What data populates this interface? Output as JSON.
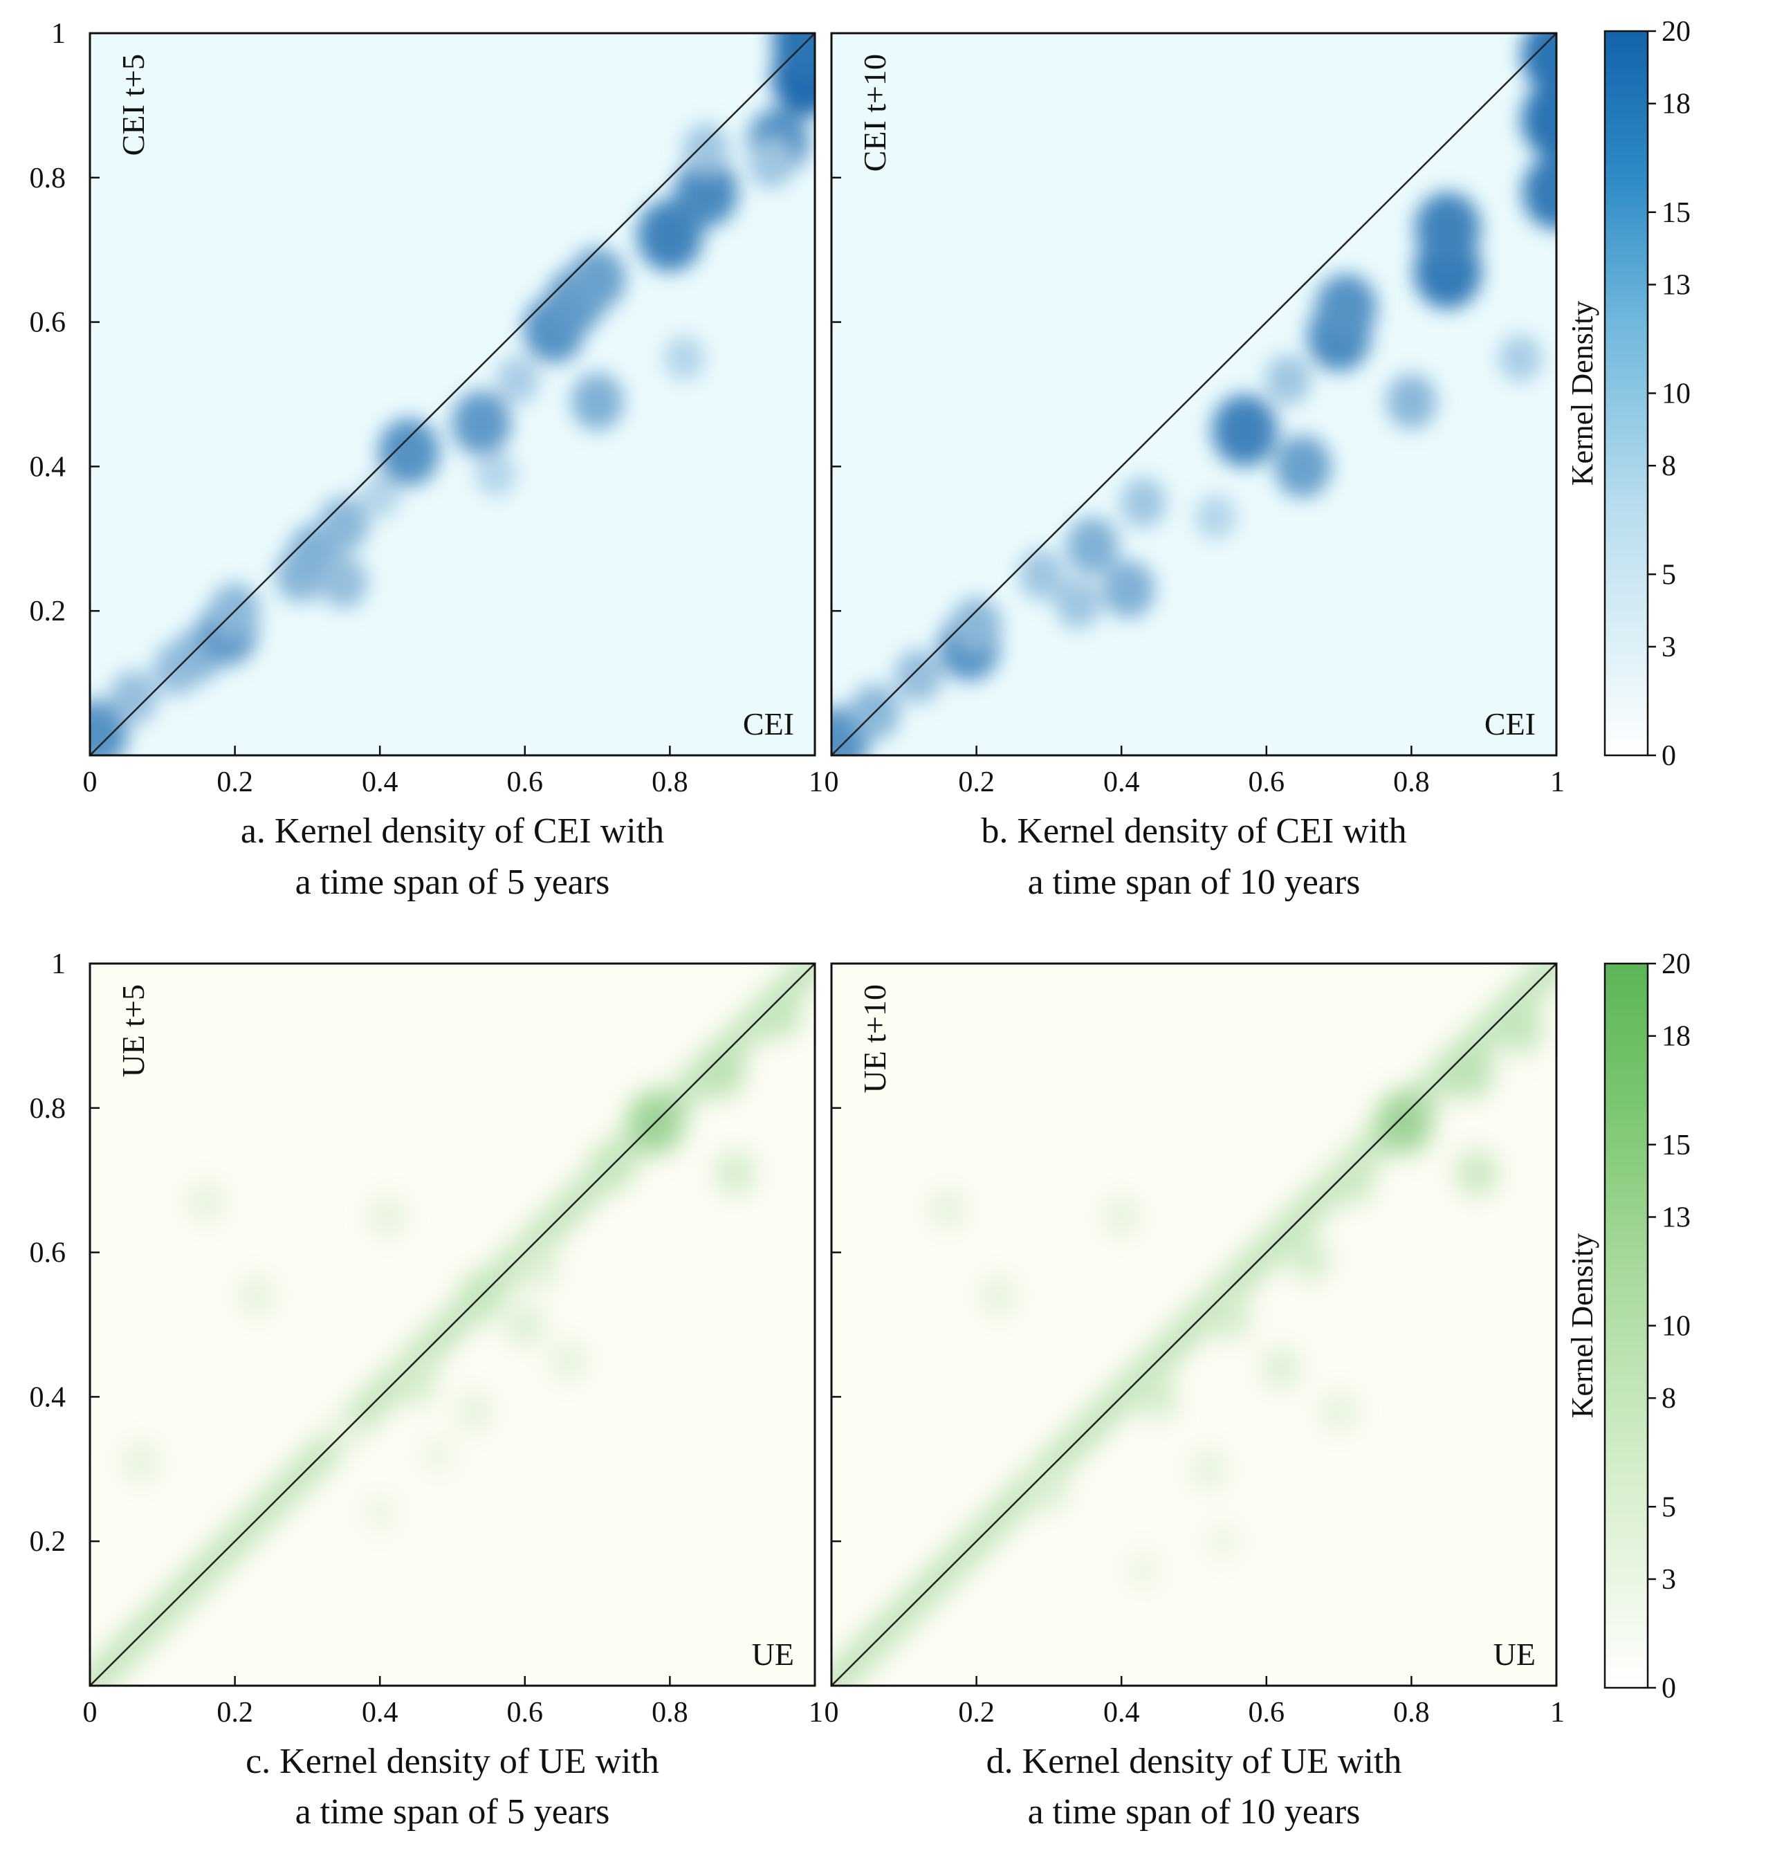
{
  "chart_data": [
    {
      "type": "heatmap",
      "panel": "a",
      "caption_line1": "a. Kernel density of CEI with",
      "caption_line2": "a time span of 5 years",
      "xlabel": "CEI",
      "ylabel": "CEI t+5",
      "xlim": [
        0,
        1
      ],
      "ylim": [
        0,
        1
      ],
      "x_ticks": [
        "0",
        "0.2",
        "0.4",
        "0.6",
        "0.8",
        "1"
      ],
      "y_ticks": [
        "0.2",
        "0.4",
        "0.6",
        "0.8",
        "1"
      ],
      "diagonal_reference_line": true,
      "colorscale": "blue",
      "density_peaks": [
        {
          "x": 0.01,
          "y": 0.03,
          "v": 14
        },
        {
          "x": 0.06,
          "y": 0.08,
          "v": 8
        },
        {
          "x": 0.12,
          "y": 0.12,
          "v": 8
        },
        {
          "x": 0.15,
          "y": 0.14,
          "v": 9
        },
        {
          "x": 0.19,
          "y": 0.17,
          "v": 13
        },
        {
          "x": 0.2,
          "y": 0.2,
          "v": 9
        },
        {
          "x": 0.29,
          "y": 0.25,
          "v": 9
        },
        {
          "x": 0.31,
          "y": 0.28,
          "v": 10
        },
        {
          "x": 0.35,
          "y": 0.24,
          "v": 8
        },
        {
          "x": 0.35,
          "y": 0.32,
          "v": 9
        },
        {
          "x": 0.4,
          "y": 0.36,
          "v": 5
        },
        {
          "x": 0.44,
          "y": 0.42,
          "v": 14
        },
        {
          "x": 0.54,
          "y": 0.46,
          "v": 13
        },
        {
          "x": 0.56,
          "y": 0.39,
          "v": 5
        },
        {
          "x": 0.59,
          "y": 0.52,
          "v": 6
        },
        {
          "x": 0.64,
          "y": 0.59,
          "v": 14
        },
        {
          "x": 0.67,
          "y": 0.63,
          "v": 13
        },
        {
          "x": 0.7,
          "y": 0.66,
          "v": 12
        },
        {
          "x": 0.7,
          "y": 0.49,
          "v": 10
        },
        {
          "x": 0.82,
          "y": 0.55,
          "v": 5
        },
        {
          "x": 0.8,
          "y": 0.72,
          "v": 16
        },
        {
          "x": 0.85,
          "y": 0.78,
          "v": 15
        },
        {
          "x": 0.85,
          "y": 0.84,
          "v": 7
        },
        {
          "x": 0.95,
          "y": 0.85,
          "v": 14
        },
        {
          "x": 0.94,
          "y": 0.82,
          "v": 7
        },
        {
          "x": 0.99,
          "y": 0.94,
          "v": 19
        },
        {
          "x": 0.99,
          "y": 0.99,
          "v": 18
        }
      ]
    },
    {
      "type": "heatmap",
      "panel": "b",
      "caption_line1": "b. Kernel density of CEI with",
      "caption_line2": "a time span of 10 years",
      "xlabel": "CEI",
      "ylabel": "CEI t+10",
      "xlim": [
        0,
        1
      ],
      "ylim": [
        0,
        1
      ],
      "x_ticks": [
        "0",
        "0.2",
        "0.4",
        "0.6",
        "0.8",
        "1"
      ],
      "y_ticks": [
        "0.2",
        "0.4",
        "0.6",
        "0.8",
        "1"
      ],
      "diagonal_reference_line": true,
      "colorscale": "blue",
      "density_peaks": [
        {
          "x": 0.01,
          "y": 0.02,
          "v": 14
        },
        {
          "x": 0.06,
          "y": 0.06,
          "v": 9
        },
        {
          "x": 0.12,
          "y": 0.11,
          "v": 8
        },
        {
          "x": 0.19,
          "y": 0.15,
          "v": 14
        },
        {
          "x": 0.2,
          "y": 0.18,
          "v": 9
        },
        {
          "x": 0.29,
          "y": 0.25,
          "v": 7
        },
        {
          "x": 0.34,
          "y": 0.21,
          "v": 7
        },
        {
          "x": 0.36,
          "y": 0.29,
          "v": 10
        },
        {
          "x": 0.41,
          "y": 0.23,
          "v": 10
        },
        {
          "x": 0.43,
          "y": 0.35,
          "v": 7
        },
        {
          "x": 0.53,
          "y": 0.33,
          "v": 5
        },
        {
          "x": 0.57,
          "y": 0.45,
          "v": 16
        },
        {
          "x": 0.63,
          "y": 0.52,
          "v": 7
        },
        {
          "x": 0.65,
          "y": 0.4,
          "v": 12
        },
        {
          "x": 0.7,
          "y": 0.58,
          "v": 15
        },
        {
          "x": 0.71,
          "y": 0.62,
          "v": 14
        },
        {
          "x": 0.8,
          "y": 0.49,
          "v": 9
        },
        {
          "x": 0.85,
          "y": 0.67,
          "v": 17
        },
        {
          "x": 0.85,
          "y": 0.73,
          "v": 16
        },
        {
          "x": 0.95,
          "y": 0.55,
          "v": 6
        },
        {
          "x": 1.0,
          "y": 0.78,
          "v": 17
        },
        {
          "x": 1.0,
          "y": 0.88,
          "v": 18
        },
        {
          "x": 1.0,
          "y": 0.97,
          "v": 18
        }
      ]
    },
    {
      "type": "heatmap",
      "panel": "c",
      "caption_line1": "c. Kernel density of UE with",
      "caption_line2": "a time span of 5 years",
      "xlabel": "UE",
      "ylabel": "UE t+5",
      "xlim": [
        0,
        1
      ],
      "ylim": [
        0,
        1
      ],
      "x_ticks": [
        "0",
        "0.2",
        "0.4",
        "0.6",
        "0.8",
        "1"
      ],
      "y_ticks": [
        "0.2",
        "0.4",
        "0.6",
        "0.8",
        "1"
      ],
      "diagonal_reference_line": true,
      "colorscale": "green",
      "density_peaks": [
        {
          "x": 0.16,
          "y": 0.67,
          "v": 3
        },
        {
          "x": 0.23,
          "y": 0.54,
          "v": 3
        },
        {
          "x": 0.41,
          "y": 0.65,
          "v": 3
        },
        {
          "x": 0.07,
          "y": 0.31,
          "v": 3
        },
        {
          "x": 0.4,
          "y": 0.24,
          "v": 2
        },
        {
          "x": 0.54,
          "y": 0.54,
          "v": 7
        },
        {
          "x": 0.62,
          "y": 0.58,
          "v": 4
        },
        {
          "x": 0.72,
          "y": 0.72,
          "v": 7
        },
        {
          "x": 0.78,
          "y": 0.78,
          "v": 12
        },
        {
          "x": 0.87,
          "y": 0.85,
          "v": 8
        },
        {
          "x": 0.89,
          "y": 0.71,
          "v": 5
        },
        {
          "x": 0.95,
          "y": 0.93,
          "v": 7
        },
        {
          "x": 0.45,
          "y": 0.42,
          "v": 5
        },
        {
          "x": 0.35,
          "y": 0.35,
          "v": 3
        },
        {
          "x": 0.6,
          "y": 0.5,
          "v": 4
        },
        {
          "x": 0.66,
          "y": 0.45,
          "v": 3
        },
        {
          "x": 0.48,
          "y": 0.32,
          "v": 2
        },
        {
          "x": 0.53,
          "y": 0.38,
          "v": 3
        }
      ]
    },
    {
      "type": "heatmap",
      "panel": "d",
      "caption_line1": "d. Kernel density of UE with",
      "caption_line2": "a time span of 10 years",
      "xlabel": "UE",
      "ylabel": "UE t+10",
      "xlim": [
        0,
        1
      ],
      "ylim": [
        0,
        1
      ],
      "x_ticks": [
        "0",
        "0.2",
        "0.4",
        "0.6",
        "0.8",
        "1"
      ],
      "y_ticks": [
        "0.2",
        "0.4",
        "0.6",
        "0.8",
        "1"
      ],
      "diagonal_reference_line": true,
      "colorscale": "green",
      "density_peaks": [
        {
          "x": 0.16,
          "y": 0.66,
          "v": 3
        },
        {
          "x": 0.23,
          "y": 0.54,
          "v": 3
        },
        {
          "x": 0.4,
          "y": 0.65,
          "v": 3
        },
        {
          "x": 0.55,
          "y": 0.51,
          "v": 5
        },
        {
          "x": 0.66,
          "y": 0.59,
          "v": 5
        },
        {
          "x": 0.72,
          "y": 0.7,
          "v": 6
        },
        {
          "x": 0.79,
          "y": 0.78,
          "v": 12
        },
        {
          "x": 0.88,
          "y": 0.85,
          "v": 8
        },
        {
          "x": 0.89,
          "y": 0.71,
          "v": 6
        },
        {
          "x": 0.95,
          "y": 0.91,
          "v": 7
        },
        {
          "x": 0.45,
          "y": 0.4,
          "v": 5
        },
        {
          "x": 0.3,
          "y": 0.27,
          "v": 4
        },
        {
          "x": 0.62,
          "y": 0.44,
          "v": 4
        },
        {
          "x": 0.7,
          "y": 0.38,
          "v": 3
        },
        {
          "x": 0.52,
          "y": 0.3,
          "v": 3
        },
        {
          "x": 0.54,
          "y": 0.2,
          "v": 2
        },
        {
          "x": 0.43,
          "y": 0.16,
          "v": 2
        }
      ]
    }
  ],
  "colorbars": [
    {
      "title": "Kernel Density",
      "colorscale": "blue",
      "range": [
        0,
        20
      ],
      "ticks": [
        "0",
        "3",
        "5",
        "8",
        "10",
        "13",
        "15",
        "18",
        "20"
      ]
    },
    {
      "title": "Kernel Density",
      "colorscale": "green",
      "range": [
        0,
        20
      ],
      "ticks": [
        "0",
        "3",
        "5",
        "8",
        "10",
        "13",
        "15",
        "18",
        "20"
      ]
    }
  ],
  "colors": {
    "blue_low": "#eafafd",
    "blue_high": "#1565ac",
    "green_low": "#fcfdf3",
    "green_high": "#5db758",
    "axis": "#111111"
  }
}
